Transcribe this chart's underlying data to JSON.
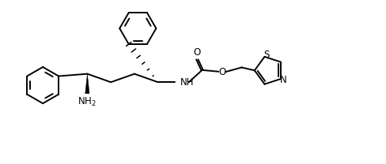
{
  "bg_color": "#ffffff",
  "line_color": "#000000",
  "line_width": 1.4,
  "font_size": 8.5,
  "xlim": [
    0,
    10
  ],
  "ylim": [
    0,
    4.27
  ],
  "benz_r": 0.48,
  "th_r": 0.38
}
